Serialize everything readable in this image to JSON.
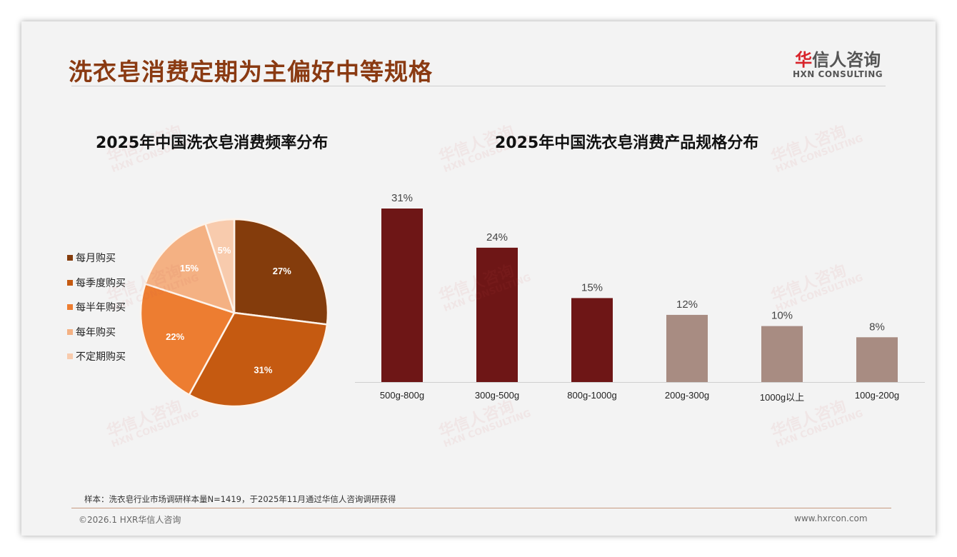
{
  "header": {
    "title": "洗衣皂消费定期为主偏好中等规格",
    "logo_cn_highlight": "华",
    "logo_cn_rest": "信人咨询",
    "logo_en": "HXN CONSULTING"
  },
  "watermark": {
    "cn": "华信人咨询",
    "en": "HXN CONSULTING"
  },
  "colors": {
    "title": "#8a3a12",
    "bar_top": "#6e1616",
    "bar_other": "#a88c82"
  },
  "chart_data": [
    {
      "type": "pie",
      "title": "2025年中国洗衣皂消费频率分布",
      "legend": "left",
      "categories": [
        "每月购买",
        "每季度购买",
        "每半年购买",
        "每年购买",
        "不定期购买"
      ],
      "values": [
        27,
        31,
        22,
        15,
        5
      ],
      "labels": [
        "27%",
        "31%",
        "22%",
        "15%",
        "5%"
      ],
      "colors": [
        "#843c0c",
        "#c55a11",
        "#ed7d31",
        "#f4b183",
        "#f8cbad"
      ]
    },
    {
      "type": "bar",
      "title": "2025年中国洗衣皂消费产品规格分布",
      "categories": [
        "500g-800g",
        "300g-500g",
        "800g-1000g",
        "200g-300g",
        "1000g以上",
        "100g-200g"
      ],
      "values": [
        31,
        24,
        15,
        12,
        10,
        8
      ],
      "labels": [
        "31%",
        "24%",
        "15%",
        "12%",
        "10%",
        "8%"
      ],
      "ylim": [
        0,
        31
      ]
    }
  ],
  "footer": {
    "sample": "样本：洗衣皂行业市场调研样本量N=1419，于2025年11月通过华信人咨询调研获得",
    "copyright": "©2026.1 HXR华信人咨询",
    "url": "www.hxrcon.com"
  }
}
